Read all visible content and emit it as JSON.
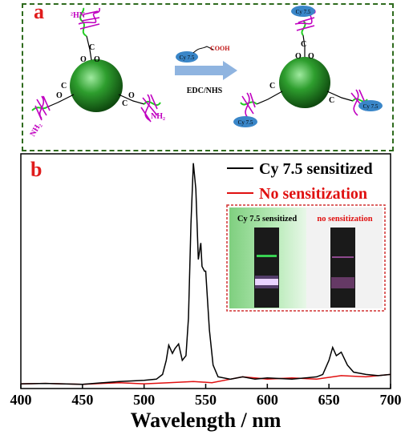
{
  "panel_a": {
    "letter": "a",
    "reagent_dye": "Cy 7.5",
    "reagent_group": "COOH",
    "arrow_label": "EDC/NHS",
    "amine_label": "NH",
    "amine_sub": "2",
    "carboxyl_c": "C",
    "carboxyl_o": "O",
    "carboxyl_om": "O",
    "carboxyl_minus": "-",
    "product_dye": "Cy 7.5",
    "colors": {
      "border": "#2f6b1e",
      "nanoparticle": "#2e9e2e",
      "dna": "#c000c0",
      "linker": "#22cc22",
      "dye": "#3a86c8",
      "arrow": "#8fb4e0"
    }
  },
  "panel_b": {
    "letter": "b",
    "inset": {
      "left_label": "Cy 7.5 sensitized",
      "right_label": "no sensitization",
      "colors": {
        "border": "#d03030",
        "left_bg": "#8fd88f",
        "right_bg": "#f2f2f2",
        "tube": "#1a1a1a",
        "glow": "#ffffff",
        "green_band": "#40ff60",
        "pink_band": "#c060c0"
      }
    }
  },
  "chart_data": {
    "type": "line",
    "xlabel": "Wavelength / nm",
    "ylabel": "",
    "xlim": [
      400,
      700
    ],
    "ylim": [
      0,
      1
    ],
    "x_ticks": [
      400,
      450,
      500,
      550,
      600,
      650,
      700
    ],
    "grid": false,
    "legend_position": "top-right",
    "series": [
      {
        "name": "Cy 7.5 sensitized",
        "color": "#000000",
        "points": [
          [
            400,
            0.02
          ],
          [
            420,
            0.022
          ],
          [
            450,
            0.018
          ],
          [
            480,
            0.03
          ],
          [
            500,
            0.035
          ],
          [
            510,
            0.04
          ],
          [
            515,
            0.06
          ],
          [
            518,
            0.12
          ],
          [
            520,
            0.185
          ],
          [
            523,
            0.15
          ],
          [
            525,
            0.17
          ],
          [
            528,
            0.19
          ],
          [
            531,
            0.12
          ],
          [
            534,
            0.14
          ],
          [
            536,
            0.3
          ],
          [
            538,
            0.7
          ],
          [
            540,
            0.96
          ],
          [
            542,
            0.85
          ],
          [
            544,
            0.55
          ],
          [
            546,
            0.62
          ],
          [
            547,
            0.52
          ],
          [
            549,
            0.5
          ],
          [
            550,
            0.5
          ],
          [
            553,
            0.25
          ],
          [
            556,
            0.1
          ],
          [
            560,
            0.05
          ],
          [
            570,
            0.04
          ],
          [
            580,
            0.05
          ],
          [
            590,
            0.04
          ],
          [
            600,
            0.045
          ],
          [
            620,
            0.04
          ],
          [
            640,
            0.05
          ],
          [
            645,
            0.06
          ],
          [
            650,
            0.12
          ],
          [
            653,
            0.175
          ],
          [
            656,
            0.14
          ],
          [
            660,
            0.155
          ],
          [
            665,
            0.1
          ],
          [
            670,
            0.07
          ],
          [
            680,
            0.06
          ],
          [
            690,
            0.055
          ],
          [
            700,
            0.06
          ]
        ]
      },
      {
        "name": "No sensitization",
        "color": "#e01010",
        "points": [
          [
            400,
            0.02
          ],
          [
            420,
            0.022
          ],
          [
            450,
            0.018
          ],
          [
            480,
            0.025
          ],
          [
            500,
            0.02
          ],
          [
            520,
            0.025
          ],
          [
            540,
            0.03
          ],
          [
            555,
            0.025
          ],
          [
            570,
            0.04
          ],
          [
            580,
            0.05
          ],
          [
            590,
            0.045
          ],
          [
            600,
            0.04
          ],
          [
            620,
            0.045
          ],
          [
            640,
            0.04
          ],
          [
            660,
            0.055
          ],
          [
            680,
            0.05
          ],
          [
            700,
            0.06
          ]
        ]
      }
    ]
  }
}
